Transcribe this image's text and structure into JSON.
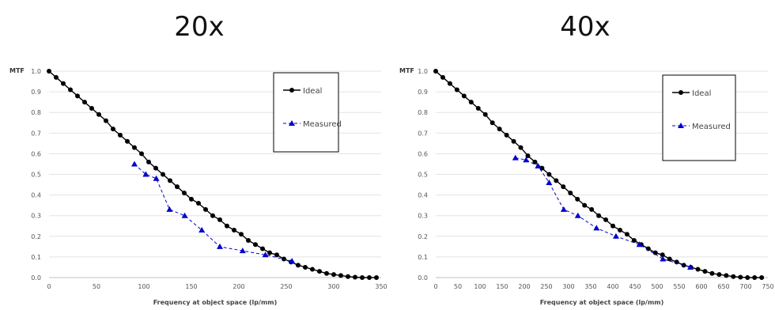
{
  "chart_data": [
    {
      "type": "line",
      "title": "20x",
      "ylabel": "MTF",
      "xlabel": "Frequency at object space (lp/mm)",
      "xlim": [
        0,
        350
      ],
      "ylim": [
        0,
        1.0
      ],
      "x_ticks": [
        0,
        50,
        100,
        150,
        200,
        250,
        300,
        350
      ],
      "y_ticks": [
        0.0,
        0.1,
        0.2,
        0.3,
        0.4,
        0.5,
        0.6,
        0.7,
        0.8,
        0.9,
        1.0
      ],
      "grid": "horizontal",
      "legend": "top-right",
      "series": [
        {
          "name": "Ideal",
          "color": "#000000",
          "marker": "circle",
          "dash": "solid",
          "x": [
            0,
            7.5,
            15,
            22.5,
            30,
            37.5,
            45,
            52.5,
            60,
            67.5,
            75,
            82.5,
            90,
            97.5,
            105,
            112.5,
            120,
            127.5,
            135,
            142.5,
            150,
            157.5,
            165,
            172.5,
            180,
            187.5,
            195,
            202.5,
            210,
            217.5,
            225,
            232.5,
            240,
            247.5,
            255,
            262.5,
            270,
            277.5,
            285,
            292.5,
            300,
            307.5,
            315,
            322.5,
            330,
            337.5,
            345
          ],
          "y": [
            1.0,
            0.97,
            0.94,
            0.91,
            0.88,
            0.85,
            0.82,
            0.79,
            0.76,
            0.72,
            0.69,
            0.66,
            0.63,
            0.6,
            0.56,
            0.53,
            0.5,
            0.47,
            0.44,
            0.41,
            0.38,
            0.36,
            0.33,
            0.3,
            0.28,
            0.25,
            0.23,
            0.21,
            0.18,
            0.16,
            0.14,
            0.12,
            0.11,
            0.09,
            0.075,
            0.06,
            0.05,
            0.04,
            0.03,
            0.02,
            0.015,
            0.01,
            0.005,
            0.002,
            0.0,
            0.0,
            0.0
          ]
        },
        {
          "name": "Measured",
          "color": "#0000CC",
          "marker": "triangle",
          "dash": "dashed",
          "x": [
            90,
            102,
            113,
            127,
            143,
            161,
            180,
            204,
            228,
            256
          ],
          "y": [
            0.55,
            0.5,
            0.48,
            0.33,
            0.3,
            0.23,
            0.15,
            0.13,
            0.11,
            0.08
          ]
        }
      ]
    },
    {
      "type": "line",
      "title": "40x",
      "ylabel": "MTF",
      "xlabel": "Frequency at object space (lp/mm)",
      "xlim": [
        0,
        750
      ],
      "ylim": [
        0,
        1.0
      ],
      "x_ticks": [
        0,
        50,
        100,
        150,
        200,
        250,
        300,
        350,
        400,
        450,
        500,
        550,
        600,
        650,
        700,
        750
      ],
      "y_ticks": [
        0.0,
        0.1,
        0.2,
        0.3,
        0.4,
        0.5,
        0.6,
        0.7,
        0.8,
        0.9,
        1.0
      ],
      "grid": "horizontal",
      "legend": "top-right",
      "series": [
        {
          "name": "Ideal",
          "color": "#000000",
          "marker": "circle",
          "dash": "solid",
          "x": [
            0,
            16,
            32,
            48,
            64,
            80,
            96,
            112,
            128,
            144,
            160,
            176,
            192,
            208,
            224,
            240,
            256,
            272,
            288,
            304,
            320,
            336,
            352,
            368,
            384,
            400,
            416,
            432,
            448,
            464,
            480,
            496,
            512,
            528,
            544,
            560,
            576,
            592,
            608,
            624,
            640,
            656,
            672,
            688,
            704,
            720,
            736
          ],
          "y": [
            1.0,
            0.97,
            0.94,
            0.91,
            0.88,
            0.85,
            0.82,
            0.79,
            0.75,
            0.72,
            0.69,
            0.66,
            0.63,
            0.59,
            0.56,
            0.53,
            0.5,
            0.47,
            0.44,
            0.41,
            0.38,
            0.35,
            0.33,
            0.3,
            0.28,
            0.25,
            0.23,
            0.21,
            0.18,
            0.16,
            0.14,
            0.12,
            0.11,
            0.09,
            0.075,
            0.06,
            0.05,
            0.04,
            0.03,
            0.02,
            0.015,
            0.01,
            0.005,
            0.002,
            0.0,
            0.0,
            0.0
          ]
        },
        {
          "name": "Measured",
          "color": "#0000CC",
          "marker": "triangle",
          "dash": "dashed",
          "x": [
            180,
            204,
            231,
            256,
            289,
            321,
            363,
            407,
            460,
            513,
            575
          ],
          "y": [
            0.58,
            0.57,
            0.54,
            0.46,
            0.33,
            0.3,
            0.24,
            0.2,
            0.16,
            0.09,
            0.05
          ]
        }
      ]
    }
  ]
}
